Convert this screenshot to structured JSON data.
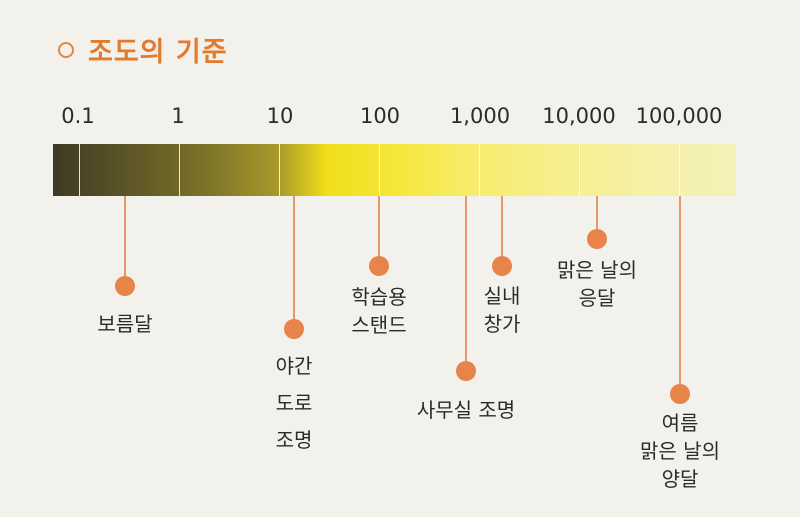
{
  "title": "조도의 기준",
  "icon": "circle-outline-icon",
  "accent_color": "#e37a2e",
  "scale": {
    "ticks": [
      "0.1",
      "1",
      "10",
      "100",
      "1,000",
      "10,000",
      "100,000"
    ]
  },
  "markers": [
    {
      "lines": [
        "보름달"
      ]
    },
    {
      "lines": [
        "야간",
        "도로",
        "조명"
      ]
    },
    {
      "lines": [
        "학습용",
        "스탠드"
      ]
    },
    {
      "lines": [
        "사무실 조명"
      ]
    },
    {
      "lines": [
        "실내",
        "창가"
      ]
    },
    {
      "lines": [
        "맑은 날의",
        "응달"
      ]
    },
    {
      "lines": [
        "여름",
        "맑은 날의",
        "양달"
      ]
    }
  ]
}
